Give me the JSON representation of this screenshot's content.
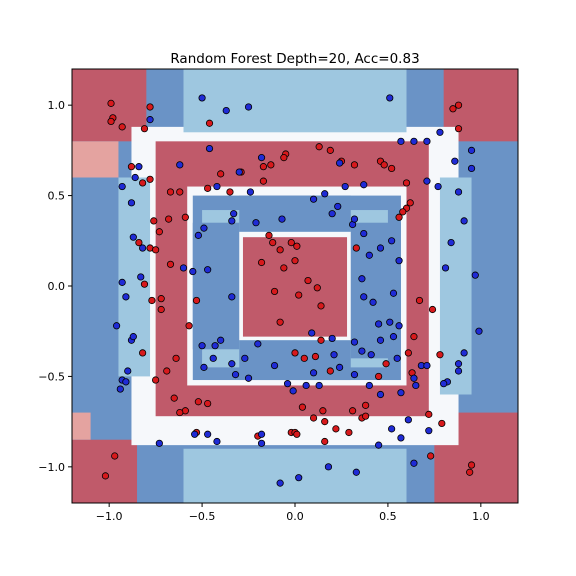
{
  "chart_data": {
    "type": "scatter",
    "title": "Random Forest Depth=20, Acc=0.83",
    "xlabel": "",
    "ylabel": "",
    "xlim": [
      -1.2,
      1.2
    ],
    "ylim": [
      -1.2,
      1.2
    ],
    "x_ticks": [
      -1.0,
      -0.5,
      0.0,
      0.5,
      1.0
    ],
    "y_ticks": [
      -1.0,
      -0.5,
      0.0,
      0.5,
      1.0
    ],
    "x_tick_labels": [
      "−1.0",
      "−0.5",
      "0.0",
      "0.5",
      "1.0"
    ],
    "y_tick_labels": [
      "−1.0",
      "−0.5",
      "0.0",
      "0.5",
      "1.0"
    ],
    "grid": false,
    "background": "decision regions: red-shaded corners, middle ring and center square; blue-shaded elsewhere",
    "colors": {
      "red_point": "#d7191c",
      "blue_point": "#1f2bd6",
      "red_region": "#c05a6a",
      "red_region_light": "#e4a3a0",
      "blue_region": "#6a93c6",
      "blue_region_light": "#9ec7e0",
      "white_band": "#f6f8fb",
      "point_edge": "#000000"
    },
    "regions": [
      {
        "shade": "blue_region",
        "x": [
          -1.2,
          1.2
        ],
        "y": [
          -1.2,
          1.2
        ]
      },
      {
        "shade": "red_region",
        "x": [
          -1.2,
          -0.8
        ],
        "y": [
          0.8,
          1.2
        ]
      },
      {
        "shade": "red_region",
        "x": [
          0.8,
          1.2
        ],
        "y": [
          0.8,
          1.2
        ]
      },
      {
        "shade": "red_region",
        "x": [
          -1.2,
          -0.85
        ],
        "y": [
          -1.2,
          -0.85
        ]
      },
      {
        "shade": "red_region",
        "x": [
          0.75,
          1.2
        ],
        "y": [
          -1.2,
          -0.7
        ]
      },
      {
        "shade": "red_region_light",
        "x": [
          -1.2,
          -0.95
        ],
        "y": [
          0.6,
          0.8
        ]
      },
      {
        "shade": "red_region_light",
        "x": [
          -1.2,
          -1.1
        ],
        "y": [
          -0.85,
          -0.7
        ]
      },
      {
        "shade": "white_band",
        "x": [
          -0.88,
          0.88
        ],
        "y": [
          -0.88,
          0.88
        ]
      },
      {
        "shade": "red_region",
        "x": [
          -0.75,
          0.72
        ],
        "y": [
          -0.72,
          0.8
        ]
      },
      {
        "shade": "white_band",
        "x": [
          -0.58,
          0.6
        ],
        "y": [
          -0.55,
          0.55
        ]
      },
      {
        "shade": "blue_region",
        "x": [
          -0.55,
          0.57
        ],
        "y": [
          -0.52,
          0.5
        ]
      },
      {
        "shade": "blue_region_light",
        "x": [
          -0.5,
          0.5
        ],
        "y": [
          -0.45,
          0.42
        ]
      },
      {
        "shade": "white_band",
        "x": [
          -0.32,
          0.32
        ],
        "y": [
          -0.3,
          0.3
        ]
      },
      {
        "shade": "red_region",
        "x": [
          -0.28,
          0.28
        ],
        "y": [
          -0.28,
          0.27
        ]
      },
      {
        "shade": "blue_region",
        "x": [
          -0.55,
          -0.3
        ],
        "y": [
          -0.35,
          0.35
        ]
      },
      {
        "shade": "blue_region",
        "x": [
          0.3,
          0.57
        ],
        "y": [
          -0.4,
          0.35
        ]
      },
      {
        "shade": "blue_region",
        "x": [
          -0.3,
          0.3
        ],
        "y": [
          0.3,
          0.5
        ]
      },
      {
        "shade": "blue_region",
        "x": [
          -0.3,
          0.3
        ],
        "y": [
          -0.52,
          -0.3
        ]
      },
      {
        "shade": "blue_region_light",
        "x": [
          -0.95,
          -0.78
        ],
        "y": [
          -0.5,
          0.6
        ]
      },
      {
        "shade": "blue_region_light",
        "x": [
          0.78,
          0.95
        ],
        "y": [
          -0.6,
          0.6
        ]
      },
      {
        "shade": "blue_region_light",
        "x": [
          -0.6,
          0.6
        ],
        "y": [
          0.85,
          1.2
        ]
      },
      {
        "shade": "blue_region_light",
        "x": [
          -0.6,
          0.6
        ],
        "y": [
          -1.2,
          -0.9
        ]
      }
    ],
    "series": [
      {
        "name": "",
        "color": "red_point",
        "points": [
          [
            -0.99,
            1.01
          ],
          [
            -0.98,
            0.93
          ],
          [
            -0.99,
            0.91
          ],
          [
            -0.93,
            0.88
          ],
          [
            -0.78,
            0.99
          ],
          [
            -0.81,
            0.87
          ],
          [
            -0.46,
            0.9
          ],
          [
            -0.4,
            0.62
          ],
          [
            -0.29,
            0.63
          ],
          [
            -0.17,
            0.66
          ],
          [
            -0.13,
            0.67
          ],
          [
            -0.05,
            0.73
          ],
          [
            -0.06,
            0.71
          ],
          [
            0.13,
            0.77
          ],
          [
            0.19,
            0.75
          ],
          [
            0.25,
            0.69
          ],
          [
            0.32,
            0.67
          ],
          [
            0.46,
            0.69
          ],
          [
            0.48,
            0.67
          ],
          [
            0.52,
            0.65
          ],
          [
            0.6,
            0.57
          ],
          [
            0.85,
            0.98
          ],
          [
            0.88,
            1.0
          ],
          [
            0.88,
            0.87
          ],
          [
            -0.88,
            0.66
          ],
          [
            -0.82,
            0.57
          ],
          [
            -0.78,
            0.59
          ],
          [
            -0.67,
            0.52
          ],
          [
            -0.62,
            0.52
          ],
          [
            -0.47,
            0.54
          ],
          [
            -0.35,
            0.52
          ],
          [
            -0.17,
            0.58
          ],
          [
            -0.59,
            0.38
          ],
          [
            -0.68,
            0.37
          ],
          [
            -0.76,
            0.36
          ],
          [
            -0.73,
            0.3
          ],
          [
            -0.84,
            0.24
          ],
          [
            -0.78,
            0.21
          ],
          [
            -0.75,
            0.2
          ],
          [
            -0.67,
            0.12
          ],
          [
            -0.81,
            0.01
          ],
          [
            -0.72,
            -0.07
          ],
          [
            -0.72,
            -0.13
          ],
          [
            -0.77,
            -0.08
          ],
          [
            -0.53,
            -0.08
          ],
          [
            -0.57,
            -0.22
          ],
          [
            -0.82,
            -0.37
          ],
          [
            -0.75,
            -0.52
          ],
          [
            -0.69,
            -0.47
          ],
          [
            -0.64,
            -0.4
          ],
          [
            -0.65,
            -0.62
          ],
          [
            -0.52,
            -0.64
          ],
          [
            -0.47,
            -0.65
          ],
          [
            -0.59,
            -0.69
          ],
          [
            -0.62,
            -0.7
          ],
          [
            -0.53,
            -0.81
          ],
          [
            -0.14,
            0.28
          ],
          [
            -0.12,
            0.24
          ],
          [
            -0.08,
            0.2
          ],
          [
            -0.02,
            0.24
          ],
          [
            0.01,
            0.22
          ],
          [
            0.0,
            0.14
          ],
          [
            -0.06,
            0.1
          ],
          [
            -0.18,
            0.13
          ],
          [
            -0.11,
            -0.03
          ],
          [
            0.02,
            -0.05
          ],
          [
            0.07,
            0.03
          ],
          [
            0.12,
            -0.01
          ],
          [
            0.14,
            -0.11
          ],
          [
            -0.08,
            -0.2
          ],
          [
            0.0,
            -0.37
          ],
          [
            0.05,
            -0.4
          ],
          [
            0.11,
            -0.39
          ],
          [
            0.14,
            -0.3
          ],
          [
            0.19,
            -0.47
          ],
          [
            0.45,
            -0.5
          ],
          [
            0.49,
            -0.43
          ],
          [
            0.61,
            -0.37
          ],
          [
            0.63,
            -0.48
          ],
          [
            0.64,
            -0.28
          ],
          [
            0.74,
            -0.13
          ],
          [
            0.78,
            -0.38
          ],
          [
            0.67,
            -0.08
          ],
          [
            0.56,
            0.38
          ],
          [
            0.6,
            0.43
          ],
          [
            0.62,
            0.46
          ],
          [
            0.58,
            0.41
          ],
          [
            0.33,
            0.21
          ],
          [
            0.04,
            -0.67
          ],
          [
            0.1,
            -0.73
          ],
          [
            0.15,
            -0.69
          ],
          [
            0.16,
            -0.75
          ],
          [
            0.22,
            -0.79
          ],
          [
            0.31,
            -0.69
          ],
          [
            0.36,
            -0.73
          ],
          [
            0.38,
            -0.66
          ],
          [
            0.38,
            -0.72
          ],
          [
            -0.02,
            -0.81
          ],
          [
            0.0,
            -0.81
          ],
          [
            0.01,
            -0.82
          ],
          [
            0.16,
            -0.86
          ],
          [
            0.29,
            -0.81
          ],
          [
            -0.2,
            -0.83
          ],
          [
            -0.97,
            -0.94
          ],
          [
            -1.02,
            -1.05
          ],
          [
            0.73,
            -0.94
          ],
          [
            0.95,
            -0.99
          ],
          [
            0.94,
            -1.03
          ],
          [
            0.72,
            -0.71
          ],
          [
            0.79,
            -0.76
          ]
        ]
      },
      {
        "name": "",
        "color": "blue_point",
        "points": [
          [
            -0.78,
            0.92
          ],
          [
            -0.5,
            1.04
          ],
          [
            -0.37,
            0.97
          ],
          [
            -0.25,
            0.99
          ],
          [
            -0.46,
            0.76
          ],
          [
            -0.62,
            0.67
          ],
          [
            -0.42,
            0.55
          ],
          [
            -0.3,
            0.63
          ],
          [
            -0.18,
            0.71
          ],
          [
            0.24,
            0.68
          ],
          [
            0.37,
            0.56
          ],
          [
            0.27,
            0.55
          ],
          [
            0.23,
            0.44
          ],
          [
            0.31,
            0.34
          ],
          [
            0.32,
            0.37
          ],
          [
            0.37,
            0.29
          ],
          [
            0.51,
            1.04
          ],
          [
            0.57,
            0.8
          ],
          [
            0.64,
            0.8
          ],
          [
            0.71,
            0.8
          ],
          [
            0.78,
            0.85
          ],
          [
            0.71,
            0.58
          ],
          [
            0.77,
            0.55
          ],
          [
            0.86,
            0.69
          ],
          [
            0.88,
            0.52
          ],
          [
            0.95,
            0.65
          ],
          [
            0.95,
            0.75
          ],
          [
            0.91,
            0.36
          ],
          [
            0.84,
            0.24
          ],
          [
            0.81,
            0.1
          ],
          [
            0.97,
            0.06
          ],
          [
            0.99,
            -0.25
          ],
          [
            0.91,
            -0.37
          ],
          [
            0.88,
            -0.43
          ],
          [
            0.88,
            -0.47
          ],
          [
            0.82,
            -0.53
          ],
          [
            0.8,
            -0.54
          ],
          [
            0.72,
            -0.8
          ],
          [
            0.61,
            -0.74
          ],
          [
            0.57,
            -0.84
          ],
          [
            0.52,
            -0.79
          ],
          [
            0.46,
            -0.6
          ],
          [
            0.33,
            -1.03
          ],
          [
            0.45,
            -0.88
          ],
          [
            0.64,
            -0.98
          ],
          [
            0.18,
            -1.0
          ],
          [
            0.02,
            -1.06
          ],
          [
            -0.08,
            -1.09
          ],
          [
            -0.18,
            -0.87
          ],
          [
            -0.18,
            -0.82
          ],
          [
            -0.42,
            -0.86
          ],
          [
            -0.47,
            -0.82
          ],
          [
            -0.54,
            -0.82
          ],
          [
            -0.73,
            -0.87
          ],
          [
            -0.94,
            -0.57
          ],
          [
            -0.9,
            -0.47
          ],
          [
            -0.93,
            -0.52
          ],
          [
            -0.91,
            -0.53
          ],
          [
            -0.88,
            -0.3
          ],
          [
            -0.87,
            -0.28
          ],
          [
            -0.96,
            -0.22
          ],
          [
            -0.91,
            -0.06
          ],
          [
            -0.93,
            0.02
          ],
          [
            -0.83,
            0.05
          ],
          [
            -0.87,
            0.27
          ],
          [
            -0.88,
            0.46
          ],
          [
            -0.93,
            0.55
          ],
          [
            -0.86,
            0.6
          ],
          [
            -0.84,
            0.66
          ],
          [
            -0.82,
            0.21
          ],
          [
            -0.6,
            0.1
          ],
          [
            -0.55,
            0.08
          ],
          [
            -0.47,
            0.09
          ],
          [
            -0.52,
            0.28
          ],
          [
            -0.49,
            0.32
          ],
          [
            -0.33,
            0.4
          ],
          [
            -0.34,
            0.36
          ],
          [
            -0.24,
            0.52
          ],
          [
            -0.21,
            0.35
          ],
          [
            -0.07,
            0.37
          ],
          [
            0.1,
            0.48
          ],
          [
            0.16,
            0.51
          ],
          [
            0.2,
            0.4
          ],
          [
            -0.34,
            -0.06
          ],
          [
            -0.4,
            -0.3
          ],
          [
            -0.43,
            -0.33
          ],
          [
            -0.34,
            -0.43
          ],
          [
            -0.27,
            -0.4
          ],
          [
            -0.44,
            -0.4
          ],
          [
            -0.32,
            -0.49
          ],
          [
            -0.25,
            -0.51
          ],
          [
            -0.2,
            -0.32
          ],
          [
            0.09,
            -0.26
          ],
          [
            0.2,
            -0.29
          ],
          [
            0.21,
            -0.38
          ],
          [
            0.24,
            -0.45
          ],
          [
            0.32,
            -0.31
          ],
          [
            0.36,
            -0.36
          ],
          [
            0.41,
            -0.38
          ],
          [
            0.46,
            -0.3
          ],
          [
            0.45,
            -0.21
          ],
          [
            0.51,
            -0.2
          ],
          [
            0.56,
            -0.22
          ],
          [
            0.53,
            -0.28
          ],
          [
            0.55,
            -0.4
          ],
          [
            0.32,
            -0.49
          ],
          [
            0.4,
            -0.55
          ],
          [
            0.57,
            -0.59
          ],
          [
            0.65,
            -0.55
          ],
          [
            0.64,
            -0.51
          ],
          [
            0.68,
            -0.44
          ],
          [
            0.71,
            -0.44
          ],
          [
            0.56,
            0.14
          ],
          [
            0.53,
            -0.04
          ],
          [
            0.42,
            -0.09
          ],
          [
            0.37,
            -0.06
          ],
          [
            0.36,
            0.04
          ],
          [
            0.4,
            0.17
          ],
          [
            0.46,
            0.21
          ],
          [
            0.52,
            0.25
          ],
          [
            -0.04,
            -0.54
          ],
          [
            -0.01,
            -0.58
          ],
          [
            0.06,
            -0.55
          ],
          [
            0.13,
            -0.55
          ],
          [
            0.1,
            -0.48
          ],
          [
            -0.11,
            -0.44
          ],
          [
            -0.5,
            -0.33
          ],
          [
            -0.49,
            -0.45
          ]
        ]
      }
    ]
  }
}
